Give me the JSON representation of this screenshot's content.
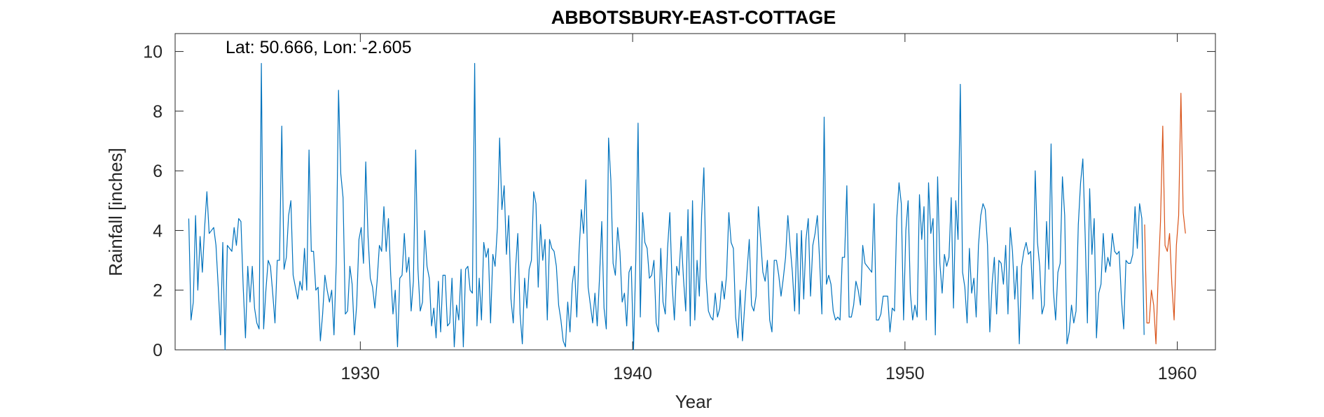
{
  "chart_data": {
    "type": "line",
    "title": "ABBOTSBURY-EAST-COTTAGE",
    "annotation": "Lat: 50.666, Lon: -2.605",
    "xlabel": "Year",
    "ylabel": "Rainfall [inches]",
    "xlim": [
      1923.2,
      1961.4
    ],
    "ylim": [
      0,
      10.6
    ],
    "xticks": [
      1930,
      1940,
      1950,
      1960
    ],
    "xtick_labels": [
      "1930",
      "1940",
      "1950",
      "1960"
    ],
    "yticks": [
      0,
      2,
      4,
      6,
      8,
      10
    ],
    "ytick_labels": [
      "0",
      "2",
      "4",
      "6",
      "8",
      "10"
    ],
    "grid": false,
    "series": [
      {
        "color": "#0072BD",
        "x_start": 1923.7,
        "x_step": 0.08333,
        "values": [
          4.4,
          1.0,
          1.6,
          4.5,
          2.0,
          3.8,
          2.6,
          4.1,
          5.3,
          3.9,
          4.0,
          4.1,
          3.5,
          2.1,
          0.5,
          3.6,
          0.0,
          3.5,
          3.4,
          3.3,
          4.1,
          3.5,
          4.4,
          4.3,
          2.1,
          0.4,
          2.8,
          1.6,
          2.8,
          1.4,
          0.9,
          0.7,
          9.6,
          0.7,
          2.0,
          3.0,
          2.8,
          1.9,
          0.9,
          3.0,
          3.0,
          7.5,
          2.7,
          3.1,
          4.5,
          5.0,
          2.5,
          2.1,
          1.7,
          2.3,
          2.0,
          3.4,
          2.0,
          6.7,
          3.3,
          3.3,
          2.0,
          2.1,
          0.3,
          1.2,
          2.5,
          2.0,
          1.6,
          2.0,
          0.5,
          2.9,
          8.7,
          5.9,
          5.1,
          1.2,
          1.3,
          2.8,
          2.2,
          0.5,
          1.5,
          3.7,
          4.1,
          2.9,
          6.3,
          3.8,
          2.4,
          2.1,
          1.4,
          2.3,
          3.5,
          3.3,
          4.8,
          3.3,
          4.4,
          2.5,
          1.2,
          2.0,
          0.1,
          2.4,
          2.5,
          3.9,
          2.6,
          3.1,
          1.3,
          2.3,
          6.7,
          2.7,
          1.3,
          1.6,
          4.0,
          2.8,
          2.4,
          0.8,
          1.4,
          0.4,
          2.3,
          0.6,
          2.5,
          2.5,
          0.8,
          0.9,
          2.4,
          0.1,
          1.5,
          1.0,
          2.7,
          0.1,
          2.7,
          2.8,
          2.0,
          1.9,
          9.6,
          0.8,
          2.4,
          1.0,
          3.6,
          3.1,
          3.4,
          0.9,
          3.2,
          2.8,
          4.1,
          7.1,
          4.7,
          5.5,
          3.2,
          4.5,
          1.7,
          0.9,
          2.7,
          3.9,
          1.2,
          0.2,
          2.4,
          1.4,
          2.7,
          3.0,
          5.3,
          4.9,
          2.1,
          4.2,
          3.0,
          3.7,
          1.0,
          3.7,
          3.4,
          3.3,
          2.8,
          1.5,
          1.0,
          0.3,
          0.1,
          1.6,
          0.6,
          2.2,
          2.8,
          1.1,
          3.3,
          4.7,
          3.9,
          5.7,
          2.1,
          1.5,
          0.9,
          1.9,
          0.8,
          2.4,
          4.3,
          1.4,
          0.7,
          7.1,
          5.7,
          2.9,
          2.5,
          4.1,
          3.3,
          1.6,
          1.9,
          0.8,
          2.6,
          2.8,
          0.0,
          3.0,
          7.6,
          1.1,
          4.6,
          3.6,
          3.4,
          2.4,
          2.5,
          3.0,
          0.9,
          0.6,
          3.4,
          1.6,
          1.2,
          3.4,
          4.6,
          2.2,
          1.0,
          2.8,
          2.5,
          3.8,
          2.4,
          1.3,
          4.7,
          0.8,
          5.0,
          1.0,
          3.0,
          1.8,
          4.5,
          6.1,
          2.4,
          1.3,
          1.1,
          1.0,
          1.9,
          1.1,
          1.4,
          2.3,
          1.7,
          2.5,
          4.6,
          3.6,
          3.4,
          1.1,
          0.4,
          2.0,
          0.3,
          1.5,
          2.6,
          3.7,
          1.5,
          1.3,
          1.8,
          4.8,
          3.7,
          2.6,
          2.3,
          3.0,
          1.0,
          0.6,
          3.0,
          3.0,
          2.5,
          1.8,
          2.4,
          3.1,
          4.5,
          3.5,
          2.6,
          1.3,
          3.9,
          1.2,
          4.0,
          1.7,
          3.7,
          4.4,
          1.8,
          3.5,
          3.9,
          4.5,
          3.0,
          1.2,
          7.8,
          2.2,
          2.5,
          2.2,
          1.3,
          1.0,
          1.1,
          1.0,
          3.1,
          3.1,
          5.5,
          1.1,
          1.1,
          1.5,
          2.3,
          2.0,
          1.5,
          3.5,
          2.9,
          2.8,
          2.7,
          2.6,
          4.9,
          1.0,
          1.0,
          1.2,
          1.8,
          1.8,
          1.8,
          0.6,
          1.4,
          1.3,
          4.4,
          5.6,
          4.9,
          1.0,
          4.0,
          5.0,
          1.9,
          1.0,
          1.5,
          1.1,
          5.2,
          3.7,
          4.8,
          1.0,
          5.6,
          3.9,
          4.4,
          0.5,
          5.8,
          2.9,
          1.9,
          3.2,
          2.8,
          3.1,
          5.1,
          1.4,
          5.0,
          3.7,
          8.9,
          2.6,
          2.1,
          0.9,
          3.4,
          1.9,
          2.4,
          1.1,
          3.5,
          4.5,
          4.9,
          4.7,
          3.5,
          0.6,
          2.2,
          3.1,
          1.2,
          3.0,
          2.9,
          2.2,
          3.5,
          1.2,
          4.1,
          3.3,
          1.7,
          2.8,
          0.2,
          2.8,
          3.3,
          3.6,
          3.2,
          3.3,
          1.7,
          6.0,
          3.6,
          2.8,
          1.2,
          1.5,
          4.3,
          2.7,
          6.9,
          2.0,
          1.0,
          2.6,
          2.9,
          5.8,
          4.5,
          0.2,
          0.6,
          1.5,
          0.9,
          1.3,
          4.2,
          5.6,
          6.4,
          3.9,
          0.9,
          5.4,
          3.2,
          4.4,
          0.4,
          1.9,
          2.2,
          3.9,
          2.6,
          3.1,
          2.8,
          3.9,
          3.3,
          3.2,
          3.3,
          1.7,
          0.7,
          3.0,
          2.9,
          2.9,
          3.2,
          4.8,
          3.4,
          4.9,
          4.4,
          0.5
        ]
      },
      {
        "color": "#D95319",
        "x_start": 1958.8,
        "x_step": 0.08333,
        "values": [
          4.2,
          0.9,
          0.9,
          2.0,
          1.5,
          0.2,
          2.5,
          4.3,
          7.5,
          3.5,
          3.3,
          3.9,
          2.2,
          1.0,
          3.5,
          4.5,
          8.6,
          4.6,
          3.9
        ]
      }
    ]
  }
}
